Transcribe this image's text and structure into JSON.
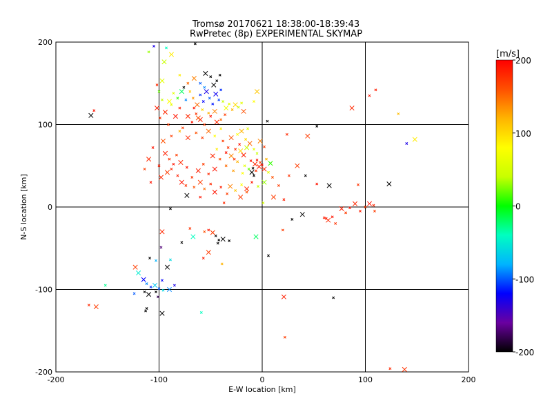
{
  "chart_data": {
    "type": "scatter",
    "title": "Tromsø 20170621 18:38:00-18:39:43",
    "subtitle": "RwPretec (8p) EXPERIMENTAL SKYMAP",
    "xlabel": "E-W location [km]",
    "ylabel": "N-S location [km]",
    "xlim": [
      -200,
      200
    ],
    "ylim": [
      -200,
      200
    ],
    "xticks": [
      "-200",
      "-100",
      "0",
      "100",
      "200"
    ],
    "yticks": [
      "-200",
      "-100",
      "0",
      "100",
      "200"
    ],
    "grid": true,
    "colorbar": {
      "label": "[m/s]",
      "min": -200,
      "max": 200,
      "ticks": [
        "200",
        "100",
        "0",
        "-100",
        "-200"
      ],
      "palette": [
        "#000000",
        "#6a00a0",
        "#0000ff",
        "#00b4ff",
        "#00ffc0",
        "#00ff00",
        "#c8ff00",
        "#ffff00",
        "#ffb400",
        "#ff5000",
        "#ff0000"
      ]
    },
    "markers": "x",
    "points": [
      {
        "x": -166,
        "y": 111,
        "v": -200
      },
      {
        "x": -163,
        "y": 117,
        "v": 190
      },
      {
        "x": -168,
        "y": -119,
        "v": 180
      },
      {
        "x": -161,
        "y": -121,
        "v": 170
      },
      {
        "x": -112,
        "y": -123,
        "v": -200
      },
      {
        "x": -113,
        "y": -126,
        "v": -200
      },
      {
        "x": -97,
        "y": -129,
        "v": -200
      },
      {
        "x": -124,
        "y": -105,
        "v": -100
      },
      {
        "x": -114,
        "y": -103,
        "v": -200
      },
      {
        "x": -110,
        "y": -106,
        "v": -200
      },
      {
        "x": -103,
        "y": -103,
        "v": -200
      },
      {
        "x": -101,
        "y": -109,
        "v": -180
      },
      {
        "x": -115,
        "y": -88,
        "v": -120
      },
      {
        "x": -112,
        "y": -93,
        "v": -90
      },
      {
        "x": -108,
        "y": -97,
        "v": -110
      },
      {
        "x": -104,
        "y": -95,
        "v": -70
      },
      {
        "x": -100,
        "y": -99,
        "v": -100
      },
      {
        "x": -96,
        "y": -101,
        "v": -60
      },
      {
        "x": -120,
        "y": -80,
        "v": -50
      },
      {
        "x": -97,
        "y": -89,
        "v": -120
      },
      {
        "x": -152,
        "y": -95,
        "v": -30
      },
      {
        "x": -123,
        "y": -73,
        "v": 170
      },
      {
        "x": -109,
        "y": -62,
        "v": -200
      },
      {
        "x": -103,
        "y": -65,
        "v": -80
      },
      {
        "x": -90,
        "y": -100,
        "v": -90
      },
      {
        "x": -85,
        "y": -95,
        "v": -130
      },
      {
        "x": -59,
        "y": -128,
        "v": -40
      },
      {
        "x": -92,
        "y": -73,
        "v": -200
      },
      {
        "x": -89,
        "y": -64,
        "v": -60
      },
      {
        "x": -98,
        "y": -49,
        "v": -170
      },
      {
        "x": -97,
        "y": -30,
        "v": 180
      },
      {
        "x": -78,
        "y": -43,
        "v": -200
      },
      {
        "x": -70,
        "y": -26,
        "v": 175
      },
      {
        "x": -67,
        "y": -36,
        "v": -40
      },
      {
        "x": -56,
        "y": -30,
        "v": 160
      },
      {
        "x": -52,
        "y": -28,
        "v": 190
      },
      {
        "x": -48,
        "y": -31,
        "v": 170
      },
      {
        "x": -45,
        "y": -35,
        "v": -200
      },
      {
        "x": -42,
        "y": -40,
        "v": -200
      },
      {
        "x": -38,
        "y": -39,
        "v": -200
      },
      {
        "x": -32,
        "y": -41,
        "v": -200
      },
      {
        "x": -43,
        "y": -44,
        "v": -200
      },
      {
        "x": -52,
        "y": -55,
        "v": 170
      },
      {
        "x": -57,
        "y": -62,
        "v": 185
      },
      {
        "x": -39,
        "y": -69,
        "v": 120
      },
      {
        "x": -6,
        "y": -36,
        "v": -20
      },
      {
        "x": 6,
        "y": -59,
        "v": -200
      },
      {
        "x": -89,
        "y": -2,
        "v": -200
      },
      {
        "x": -73,
        "y": 14,
        "v": -200
      },
      {
        "x": -60,
        "y": 12,
        "v": 190
      },
      {
        "x": -37,
        "y": 5,
        "v": 180
      },
      {
        "x": -21,
        "y": 12,
        "v": 170
      },
      {
        "x": -15,
        "y": 18,
        "v": 160
      },
      {
        "x": 1,
        "y": 5,
        "v": 50
      },
      {
        "x": 11,
        "y": 12,
        "v": 170
      },
      {
        "x": 21,
        "y": 9,
        "v": 185
      },
      {
        "x": 29,
        "y": -15,
        "v": -200
      },
      {
        "x": 39,
        "y": -9,
        "v": -200
      },
      {
        "x": 20,
        "y": -28,
        "v": 170
      },
      {
        "x": 53,
        "y": 28,
        "v": 190
      },
      {
        "x": 65,
        "y": 26,
        "v": -200
      },
      {
        "x": 60,
        "y": -13,
        "v": 185
      },
      {
        "x": 62,
        "y": -14,
        "v": 190
      },
      {
        "x": 64,
        "y": -16,
        "v": 180
      },
      {
        "x": 68,
        "y": -12,
        "v": 190
      },
      {
        "x": 71,
        "y": -20,
        "v": 175
      },
      {
        "x": 77,
        "y": -2,
        "v": 185
      },
      {
        "x": 81,
        "y": -7,
        "v": 170
      },
      {
        "x": 85,
        "y": -1,
        "v": 190
      },
      {
        "x": 90,
        "y": 4,
        "v": 180
      },
      {
        "x": 95,
        "y": -5,
        "v": 185
      },
      {
        "x": 100,
        "y": 0,
        "v": 170
      },
      {
        "x": 104,
        "y": 4,
        "v": 190
      },
      {
        "x": 108,
        "y": 2,
        "v": 180
      },
      {
        "x": 109,
        "y": -5,
        "v": 170
      },
      {
        "x": 123,
        "y": 28,
        "v": -200
      },
      {
        "x": 93,
        "y": 27,
        "v": 175
      },
      {
        "x": 69,
        "y": -110,
        "v": -200
      },
      {
        "x": 21,
        "y": -109,
        "v": 185
      },
      {
        "x": 22,
        "y": -158,
        "v": 170
      },
      {
        "x": 124,
        "y": -196,
        "v": 180
      },
      {
        "x": 138,
        "y": -197,
        "v": 175
      },
      {
        "x": 104,
        "y": 135,
        "v": 190
      },
      {
        "x": 110,
        "y": 142,
        "v": 185
      },
      {
        "x": 87,
        "y": 120,
        "v": 180
      },
      {
        "x": 132,
        "y": 113,
        "v": 115
      },
      {
        "x": 140,
        "y": 77,
        "v": -130
      },
      {
        "x": 148,
        "y": 82,
        "v": 90
      },
      {
        "x": 53,
        "y": 98,
        "v": -200
      },
      {
        "x": 5,
        "y": 104,
        "v": -200
      },
      {
        "x": 44,
        "y": 86,
        "v": 170
      },
      {
        "x": 24,
        "y": 88,
        "v": 180
      },
      {
        "x": 42,
        "y": 38,
        "v": -200
      },
      {
        "x": 34,
        "y": 50,
        "v": 170
      },
      {
        "x": 26,
        "y": 38,
        "v": 175
      },
      {
        "x": -83,
        "y": 63,
        "v": 170
      },
      {
        "x": -79,
        "y": 54,
        "v": 180
      },
      {
        "x": -73,
        "y": 48,
        "v": 190
      },
      {
        "x": -68,
        "y": 36,
        "v": 175
      },
      {
        "x": -62,
        "y": 44,
        "v": 185
      },
      {
        "x": -57,
        "y": 52,
        "v": 170
      },
      {
        "x": -52,
        "y": 40,
        "v": 180
      },
      {
        "x": -46,
        "y": 46,
        "v": 190
      },
      {
        "x": -41,
        "y": 58,
        "v": 160
      },
      {
        "x": -35,
        "y": 50,
        "v": 150
      },
      {
        "x": -30,
        "y": 62,
        "v": 140
      },
      {
        "x": -28,
        "y": 44,
        "v": 130
      },
      {
        "x": -24,
        "y": 55,
        "v": 120
      },
      {
        "x": -21,
        "y": 68,
        "v": 100
      },
      {
        "x": -19,
        "y": 41,
        "v": 80
      },
      {
        "x": -17,
        "y": 50,
        "v": 60
      },
      {
        "x": -15,
        "y": 72,
        "v": 40
      },
      {
        "x": -13,
        "y": 46,
        "v": 20
      },
      {
        "x": -11,
        "y": 56,
        "v": 190
      },
      {
        "x": -10,
        "y": 42,
        "v": -200
      },
      {
        "x": -9,
        "y": 47,
        "v": -200
      },
      {
        "x": -8,
        "y": 38,
        "v": -200
      },
      {
        "x": -7,
        "y": 52,
        "v": 180
      },
      {
        "x": -6,
        "y": 44,
        "v": 175
      },
      {
        "x": -5,
        "y": 57,
        "v": 190
      },
      {
        "x": -3,
        "y": 49,
        "v": 185
      },
      {
        "x": -2,
        "y": 54,
        "v": 170
      },
      {
        "x": 0,
        "y": 51,
        "v": 190
      },
      {
        "x": 2,
        "y": 46,
        "v": 180
      },
      {
        "x": 4,
        "y": 58,
        "v": 120
      },
      {
        "x": 6,
        "y": 42,
        "v": 60
      },
      {
        "x": 8,
        "y": 53,
        "v": 10
      },
      {
        "x": -26,
        "y": 70,
        "v": 180
      },
      {
        "x": -22,
        "y": 76,
        "v": 190
      },
      {
        "x": -18,
        "y": 63,
        "v": 185
      },
      {
        "x": -33,
        "y": 72,
        "v": 175
      },
      {
        "x": -38,
        "y": 80,
        "v": 170
      },
      {
        "x": -30,
        "y": 84,
        "v": 160
      },
      {
        "x": -24,
        "y": 88,
        "v": 80
      },
      {
        "x": -16,
        "y": 82,
        "v": 100
      },
      {
        "x": -12,
        "y": 77,
        "v": 150
      },
      {
        "x": -8,
        "y": 70,
        "v": 60
      },
      {
        "x": -5,
        "y": 65,
        "v": 40
      },
      {
        "x": -2,
        "y": 80,
        "v": 140
      },
      {
        "x": 2,
        "y": 73,
        "v": 170
      },
      {
        "x": -44,
        "y": 70,
        "v": 90
      },
      {
        "x": -48,
        "y": 62,
        "v": 180
      },
      {
        "x": -35,
        "y": 66,
        "v": 190
      },
      {
        "x": -27,
        "y": 58,
        "v": 175
      },
      {
        "x": -20,
        "y": 92,
        "v": 120
      },
      {
        "x": -14,
        "y": 95,
        "v": 60
      },
      {
        "x": -40,
        "y": 95,
        "v": 90
      },
      {
        "x": -44,
        "y": 103,
        "v": 180
      },
      {
        "x": -50,
        "y": 110,
        "v": 190
      },
      {
        "x": -56,
        "y": 100,
        "v": 170
      },
      {
        "x": -60,
        "y": 106,
        "v": 185
      },
      {
        "x": -64,
        "y": 113,
        "v": 175
      },
      {
        "x": -68,
        "y": 103,
        "v": 190
      },
      {
        "x": -72,
        "y": 110,
        "v": 180
      },
      {
        "x": -77,
        "y": 96,
        "v": 170
      },
      {
        "x": -80,
        "y": 120,
        "v": 185
      },
      {
        "x": -84,
        "y": 110,
        "v": 190
      },
      {
        "x": -88,
        "y": 124,
        "v": 60
      },
      {
        "x": -91,
        "y": 100,
        "v": 170
      },
      {
        "x": -94,
        "y": 115,
        "v": 180
      },
      {
        "x": -97,
        "y": 130,
        "v": 40
      },
      {
        "x": -99,
        "y": 108,
        "v": 175
      },
      {
        "x": -102,
        "y": 120,
        "v": 185
      },
      {
        "x": -70,
        "y": 140,
        "v": 110
      },
      {
        "x": -67,
        "y": 132,
        "v": 130
      },
      {
        "x": -63,
        "y": 124,
        "v": 150
      },
      {
        "x": -60,
        "y": 136,
        "v": -110
      },
      {
        "x": -57,
        "y": 128,
        "v": -120
      },
      {
        "x": -54,
        "y": 140,
        "v": -130
      },
      {
        "x": -51,
        "y": 132,
        "v": -100
      },
      {
        "x": -48,
        "y": 125,
        "v": -115
      },
      {
        "x": -45,
        "y": 137,
        "v": -125
      },
      {
        "x": -42,
        "y": 130,
        "v": -105
      },
      {
        "x": -40,
        "y": 142,
        "v": -110
      },
      {
        "x": -47,
        "y": 148,
        "v": -200
      },
      {
        "x": -44,
        "y": 153,
        "v": -200
      },
      {
        "x": -50,
        "y": 158,
        "v": -200
      },
      {
        "x": -55,
        "y": 162,
        "v": -200
      },
      {
        "x": -41,
        "y": 160,
        "v": -200
      },
      {
        "x": -38,
        "y": 128,
        "v": 40
      },
      {
        "x": -35,
        "y": 120,
        "v": 70
      },
      {
        "x": -32,
        "y": 125,
        "v": 60
      },
      {
        "x": -29,
        "y": 118,
        "v": 120
      },
      {
        "x": -26,
        "y": 124,
        "v": 100
      },
      {
        "x": -23,
        "y": 121,
        "v": 40
      },
      {
        "x": -20,
        "y": 126,
        "v": 60
      },
      {
        "x": -18,
        "y": 116,
        "v": 160
      },
      {
        "x": -36,
        "y": 112,
        "v": 170
      },
      {
        "x": -40,
        "y": 106,
        "v": 150
      },
      {
        "x": -46,
        "y": 116,
        "v": 140
      },
      {
        "x": -52,
        "y": 114,
        "v": 120
      },
      {
        "x": -58,
        "y": 118,
        "v": 100
      },
      {
        "x": -62,
        "y": 108,
        "v": 160
      },
      {
        "x": -66,
        "y": 120,
        "v": 190
      },
      {
        "x": -74,
        "y": 130,
        "v": -90
      },
      {
        "x": -78,
        "y": 140,
        "v": -20
      },
      {
        "x": -82,
        "y": 132,
        "v": 10
      },
      {
        "x": -86,
        "y": 138,
        "v": 60
      },
      {
        "x": -90,
        "y": 128,
        "v": 80
      },
      {
        "x": -76,
        "y": 145,
        "v": -200
      },
      {
        "x": -72,
        "y": 150,
        "v": 150
      },
      {
        "x": -66,
        "y": 156,
        "v": 140
      },
      {
        "x": -60,
        "y": 150,
        "v": -100
      },
      {
        "x": -56,
        "y": 145,
        "v": -90
      },
      {
        "x": -5,
        "y": 140,
        "v": 110
      },
      {
        "x": -8,
        "y": 128,
        "v": 80
      },
      {
        "x": -65,
        "y": 198,
        "v": -200
      },
      {
        "x": -88,
        "y": 185,
        "v": 90
      },
      {
        "x": -105,
        "y": 195,
        "v": -130
      },
      {
        "x": -110,
        "y": 188,
        "v": 30
      },
      {
        "x": -95,
        "y": 176,
        "v": 40
      },
      {
        "x": -93,
        "y": 193,
        "v": -40
      },
      {
        "x": -80,
        "y": 160,
        "v": 90
      },
      {
        "x": -97,
        "y": 153,
        "v": 60
      },
      {
        "x": -102,
        "y": 148,
        "v": 180
      },
      {
        "x": -100,
        "y": 140,
        "v": 20
      },
      {
        "x": -94,
        "y": 65,
        "v": 185
      },
      {
        "x": -90,
        "y": 58,
        "v": 175
      },
      {
        "x": -86,
        "y": 52,
        "v": 190
      },
      {
        "x": -92,
        "y": 42,
        "v": 170
      },
      {
        "x": -88,
        "y": 46,
        "v": 180
      },
      {
        "x": -82,
        "y": 38,
        "v": 185
      },
      {
        "x": -78,
        "y": 30,
        "v": 190
      },
      {
        "x": -74,
        "y": 26,
        "v": 175
      },
      {
        "x": -66,
        "y": 24,
        "v": 160
      },
      {
        "x": -60,
        "y": 30,
        "v": 170
      },
      {
        "x": -56,
        "y": 22,
        "v": 150
      },
      {
        "x": -50,
        "y": 28,
        "v": 180
      },
      {
        "x": -46,
        "y": 18,
        "v": 190
      },
      {
        "x": -40,
        "y": 24,
        "v": 185
      },
      {
        "x": -34,
        "y": 16,
        "v": 170
      },
      {
        "x": -31,
        "y": 25,
        "v": 140
      },
      {
        "x": -26,
        "y": 20,
        "v": 110
      },
      {
        "x": -20,
        "y": 27,
        "v": 80
      },
      {
        "x": -15,
        "y": 22,
        "v": 180
      },
      {
        "x": -10,
        "y": 30,
        "v": 190
      },
      {
        "x": -4,
        "y": 25,
        "v": 40
      },
      {
        "x": 2,
        "y": 30,
        "v": 30
      },
      {
        "x": 10,
        "y": 36,
        "v": 160
      },
      {
        "x": 16,
        "y": 26,
        "v": 170
      },
      {
        "x": -96,
        "y": 80,
        "v": 160
      },
      {
        "x": -88,
        "y": 86,
        "v": 170
      },
      {
        "x": -80,
        "y": 92,
        "v": 120
      },
      {
        "x": -72,
        "y": 84,
        "v": 180
      },
      {
        "x": -64,
        "y": 90,
        "v": 160
      },
      {
        "x": -58,
        "y": 84,
        "v": 170
      },
      {
        "x": -52,
        "y": 92,
        "v": 150
      },
      {
        "x": -46,
        "y": 86,
        "v": 80
      },
      {
        "x": -106,
        "y": 72,
        "v": 190
      },
      {
        "x": -110,
        "y": 58,
        "v": 180
      },
      {
        "x": -100,
        "y": 50,
        "v": 185
      },
      {
        "x": -114,
        "y": 46,
        "v": 170
      },
      {
        "x": -98,
        "y": 36,
        "v": 180
      },
      {
        "x": -108,
        "y": 30,
        "v": 190
      }
    ]
  }
}
